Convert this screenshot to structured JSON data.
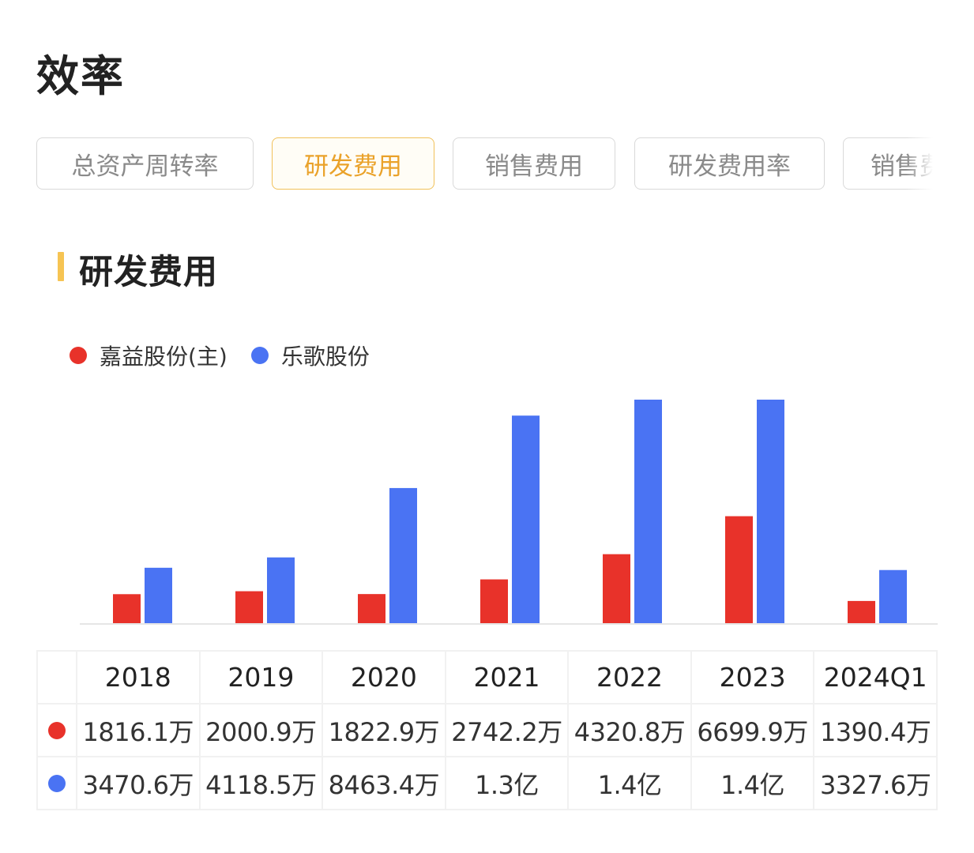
{
  "page_title": "效率",
  "tabs": [
    {
      "label": "总资产周转率",
      "active": false
    },
    {
      "label": "研发费用",
      "active": true
    },
    {
      "label": "销售费用",
      "active": false
    },
    {
      "label": "研发费用率",
      "active": false
    },
    {
      "label": "销售费用率",
      "active": false
    }
  ],
  "section_title": "研发费用",
  "colors": {
    "series_1": "#e8322a",
    "series_2": "#4a73f3",
    "accent": "#f6c453"
  },
  "chart_data": {
    "type": "bar",
    "categories": [
      "2018",
      "2019",
      "2020",
      "2021",
      "2022",
      "2023",
      "2024Q1"
    ],
    "series": [
      {
        "name": "嘉益股份(主)",
        "values": [
          1816.1,
          2000.9,
          1822.9,
          2742.2,
          4320.8,
          6699.9,
          1390.4
        ],
        "unit": "万"
      },
      {
        "name": "乐歌股份",
        "values": [
          3470.6,
          4118.5,
          8463.4,
          13000,
          14000,
          14000,
          3327.6
        ],
        "unit": "万"
      }
    ],
    "legend_position": "top-left",
    "y_axis_visible": false,
    "grid": false
  },
  "table": {
    "header": [
      "2018",
      "2019",
      "2020",
      "2021",
      "2022",
      "2023",
      "2024Q1"
    ],
    "rows": [
      {
        "values": [
          "1816.1万",
          "2000.9万",
          "1822.9万",
          "2742.2万",
          "4320.8万",
          "6699.9万",
          "1390.4万"
        ]
      },
      {
        "values": [
          "3470.6万",
          "4118.5万",
          "8463.4万",
          "1.3亿",
          "1.4亿",
          "1.4亿",
          "3327.6万"
        ]
      }
    ]
  }
}
